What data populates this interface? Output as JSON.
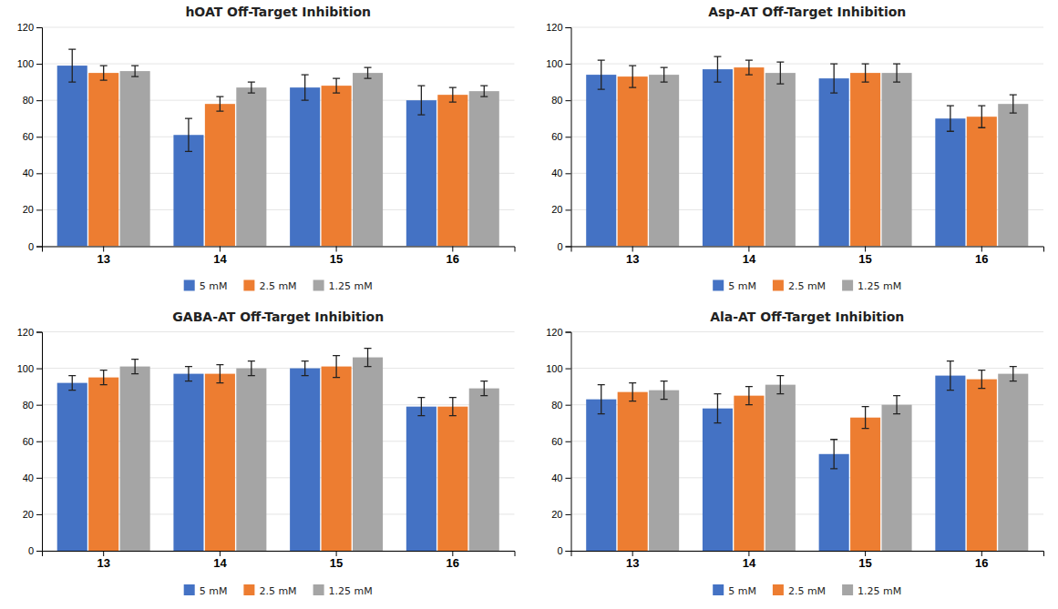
{
  "chart_data": [
    {
      "type": "bar",
      "title": "hOAT Off-Target Inhibition",
      "categories": [
        "13",
        "14",
        "15",
        "16"
      ],
      "series": [
        {
          "name": "5 mM",
          "color": "#4472C4",
          "values": [
            99,
            61,
            87,
            80
          ],
          "errors": [
            9,
            9,
            7,
            8
          ]
        },
        {
          "name": "2.5 mM",
          "color": "#ED7D31",
          "values": [
            95,
            78,
            88,
            83
          ],
          "errors": [
            4,
            4,
            4,
            4
          ]
        },
        {
          "name": "1.25 mM",
          "color": "#A5A5A5",
          "values": [
            96,
            87,
            95,
            85
          ],
          "errors": [
            3,
            3,
            3,
            3
          ]
        }
      ],
      "ylim": [
        0,
        120
      ],
      "yticks": [
        0,
        20,
        40,
        60,
        80,
        100,
        120
      ],
      "grid": true,
      "legend": "bottom"
    },
    {
      "type": "bar",
      "title": "Asp-AT Off-Target Inhibition",
      "categories": [
        "13",
        "14",
        "15",
        "16"
      ],
      "series": [
        {
          "name": "5 mM",
          "color": "#4472C4",
          "values": [
            94,
            97,
            92,
            70
          ],
          "errors": [
            8,
            7,
            8,
            7
          ]
        },
        {
          "name": "2.5 mM",
          "color": "#ED7D31",
          "values": [
            93,
            98,
            95,
            71
          ],
          "errors": [
            6,
            4,
            5,
            6
          ]
        },
        {
          "name": "1.25 mM",
          "color": "#A5A5A5",
          "values": [
            94,
            95,
            95,
            78
          ],
          "errors": [
            4,
            6,
            5,
            5
          ]
        }
      ],
      "ylim": [
        0,
        120
      ],
      "yticks": [
        0,
        20,
        40,
        60,
        80,
        100,
        120
      ],
      "grid": true,
      "legend": "bottom"
    },
    {
      "type": "bar",
      "title": "GABA-AT Off-Target Inhibition",
      "categories": [
        "13",
        "14",
        "15",
        "16"
      ],
      "series": [
        {
          "name": "5 mM",
          "color": "#4472C4",
          "values": [
            92,
            97,
            100,
            79
          ],
          "errors": [
            4,
            4,
            4,
            5
          ]
        },
        {
          "name": "2.5 mM",
          "color": "#ED7D31",
          "values": [
            95,
            97,
            101,
            79
          ],
          "errors": [
            4,
            5,
            6,
            5
          ]
        },
        {
          "name": "1.25 mM",
          "color": "#A5A5A5",
          "values": [
            101,
            100,
            106,
            89
          ],
          "errors": [
            4,
            4,
            5,
            4
          ]
        }
      ],
      "ylim": [
        0,
        120
      ],
      "yticks": [
        0,
        20,
        40,
        60,
        80,
        100,
        120
      ],
      "grid": true,
      "legend": "bottom"
    },
    {
      "type": "bar",
      "title": "Ala-AT Off-Target Inhibition",
      "categories": [
        "13",
        "14",
        "15",
        "16"
      ],
      "series": [
        {
          "name": "5 mM",
          "color": "#4472C4",
          "values": [
            83,
            78,
            53,
            96
          ],
          "errors": [
            8,
            8,
            8,
            8
          ]
        },
        {
          "name": "2.5 mM",
          "color": "#ED7D31",
          "values": [
            87,
            85,
            73,
            94
          ],
          "errors": [
            5,
            5,
            6,
            5
          ]
        },
        {
          "name": "1.25 mM",
          "color": "#A5A5A5",
          "values": [
            88,
            91,
            80,
            97
          ],
          "errors": [
            5,
            5,
            5,
            4
          ]
        }
      ],
      "ylim": [
        0,
        120
      ],
      "yticks": [
        0,
        20,
        40,
        60,
        80,
        100,
        120
      ],
      "grid": true,
      "legend": "bottom"
    }
  ]
}
